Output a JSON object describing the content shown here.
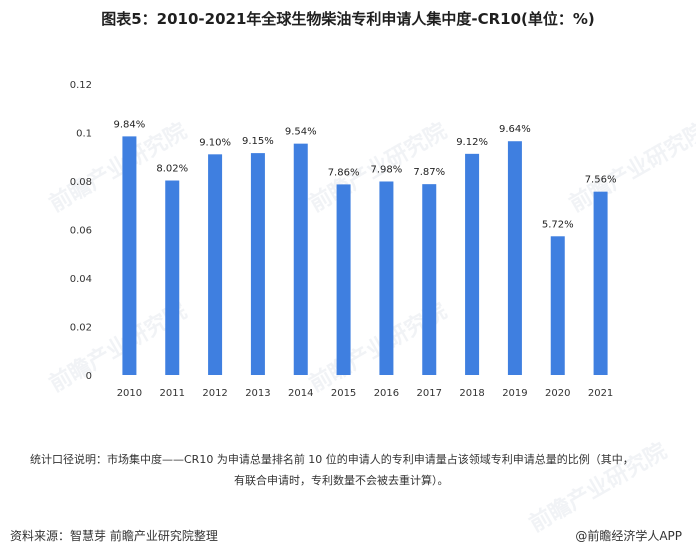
{
  "title": "图表5：2010-2021年全球生物柴油专利申请人集中度-CR10(单位：%)",
  "note_line1": "统计口径说明：市场集中度——CR10 为申请总量排名前 10 位的申请人的专利申请量占该领域专利申请总量的比例（其中，",
  "note_line2": "有联合申请时，专利数量不会被去重计算）。",
  "source": "资料来源：智慧芽 前瞻产业研究院整理",
  "brand": "@前瞻经济学人APP",
  "watermark": "前瞻产业研究院",
  "colors": {
    "bar": "#3f7fe0"
  },
  "chart_data": {
    "type": "bar",
    "categories": [
      "2010",
      "2011",
      "2012",
      "2013",
      "2014",
      "2015",
      "2016",
      "2017",
      "2018",
      "2019",
      "2020",
      "2021"
    ],
    "values": [
      0.0984,
      0.0802,
      0.091,
      0.0915,
      0.0954,
      0.0786,
      0.0798,
      0.0787,
      0.0912,
      0.0964,
      0.0572,
      0.0756
    ],
    "data_labels": [
      "9.84%",
      "8.02%",
      "9.10%",
      "9.15%",
      "9.54%",
      "7.86%",
      "7.98%",
      "7.87%",
      "9.12%",
      "9.64%",
      "5.72%",
      "7.56%"
    ],
    "yticks": [
      "0",
      "0.02",
      "0.04",
      "0.06",
      "0.08",
      "0.1",
      "0.12"
    ],
    "ytick_values": [
      0,
      0.02,
      0.04,
      0.06,
      0.08,
      0.1,
      0.12
    ],
    "ylim": [
      0,
      0.12
    ],
    "grid": false,
    "legend": "none"
  }
}
